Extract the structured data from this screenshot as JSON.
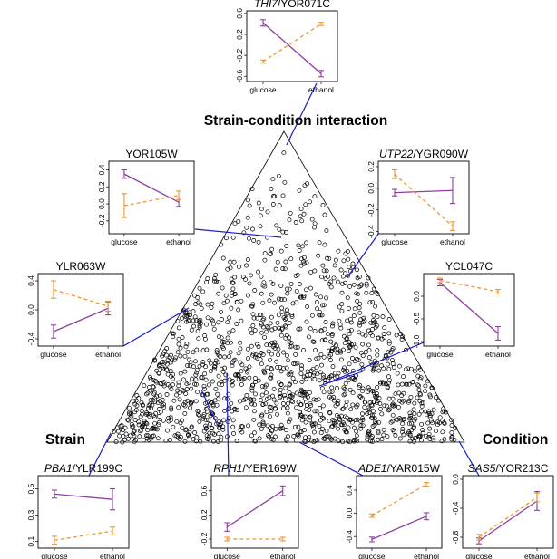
{
  "vertex_labels": {
    "top": "Strain-condition interaction",
    "left": "Strain",
    "right": "Condition"
  },
  "colors": {
    "points": "#000000",
    "leader": "#1a1acc",
    "strain_a": "#8e3fa0",
    "strain_b": "#e79a36"
  },
  "chart_data": [
    {
      "type": "scatter",
      "name": "ternary",
      "vertices": [
        "Strain-condition interaction",
        "Strain",
        "Condition"
      ],
      "points_description_count_approx": 1600
    },
    {
      "type": "line",
      "title_italic": "THI7",
      "title_rest": "/YOR071C",
      "categories": [
        "glucose",
        "ethanol"
      ],
      "ylim": [
        -0.7,
        0.65
      ],
      "yticks": [
        {
          "v": 0.6,
          "t": "0.6"
        },
        {
          "v": 0.2,
          "t": "0.2"
        },
        {
          "v": -0.2,
          "t": "-0.2"
        },
        {
          "v": -0.6,
          "t": "-0.6"
        }
      ],
      "series": [
        {
          "values": [
            0.42,
            -0.55
          ],
          "err": [
            0.06,
            0.06
          ]
        },
        {
          "values": [
            -0.32,
            0.4
          ],
          "err": [
            0.03,
            0.03
          ]
        }
      ]
    },
    {
      "type": "line",
      "title_italic": "",
      "title_rest": "YOR105W",
      "categories": [
        "glucose",
        "ethanol"
      ],
      "ylim": [
        -0.35,
        0.5
      ],
      "yticks": [
        {
          "v": 0.4,
          "t": "0.4"
        },
        {
          "v": 0.2,
          "t": "0.2"
        },
        {
          "v": 0.0,
          "t": "0.0"
        },
        {
          "v": -0.2,
          "t": "-0.2"
        }
      ],
      "series": [
        {
          "values": [
            0.35,
            0.02
          ],
          "err": [
            0.05,
            0.05
          ]
        },
        {
          "values": [
            -0.02,
            0.1
          ],
          "err": [
            0.14,
            0.05
          ]
        }
      ]
    },
    {
      "type": "line",
      "title_italic": "UTP22",
      "title_rest": "/YGR090W",
      "categories": [
        "glucose",
        "ethanol"
      ],
      "ylim": [
        -0.42,
        0.25
      ],
      "yticks": [
        {
          "v": 0.2,
          "t": "0.2"
        },
        {
          "v": 0.0,
          "t": "0.0"
        },
        {
          "v": -0.2,
          "t": "-0.2"
        },
        {
          "v": -0.4,
          "t": "-0.4"
        }
      ],
      "series": [
        {
          "values": [
            -0.04,
            -0.02
          ],
          "err": [
            0.03,
            0.12
          ]
        },
        {
          "values": [
            0.13,
            -0.35
          ],
          "err": [
            0.04,
            0.04
          ]
        }
      ]
    },
    {
      "type": "line",
      "title_italic": "",
      "title_rest": "YLR063W",
      "categories": [
        "glucose",
        "ethanol"
      ],
      "ylim": [
        -0.5,
        0.5
      ],
      "yticks": [
        {
          "v": 0.4,
          "t": "0.4"
        },
        {
          "v": 0.0,
          "t": "0.0"
        },
        {
          "v": -0.4,
          "t": "-0.4"
        }
      ],
      "series": [
        {
          "values": [
            -0.3,
            0.02
          ],
          "err": [
            0.09,
            0.09
          ]
        },
        {
          "values": [
            0.28,
            0.05
          ],
          "err": [
            0.12,
            0.07
          ]
        }
      ]
    },
    {
      "type": "line",
      "title_italic": "",
      "title_rest": "YCL047C",
      "categories": [
        "glucose",
        "ethanol"
      ],
      "ylim": [
        -1.1,
        0.5
      ],
      "yticks": [
        {
          "v": 0.0,
          "t": "0.0"
        },
        {
          "v": -0.5,
          "t": "-0.5"
        },
        {
          "v": -1.0,
          "t": "-1.0"
        }
      ],
      "series": [
        {
          "values": [
            0.3,
            -0.82
          ],
          "err": [
            0.07,
            0.15
          ]
        },
        {
          "values": [
            0.35,
            0.1
          ],
          "err": [
            0.05,
            0.05
          ]
        }
      ]
    },
    {
      "type": "line",
      "title_italic": "PBA1",
      "title_rest": "/YLR199C",
      "categories": [
        "glucose",
        "ethanol"
      ],
      "ylim": [
        0.05,
        0.6
      ],
      "yticks": [
        {
          "v": 0.5,
          "t": "0.5"
        },
        {
          "v": 0.3,
          "t": "0.3"
        },
        {
          "v": 0.1,
          "t": "0.1"
        }
      ],
      "series": [
        {
          "values": [
            0.46,
            0.42
          ],
          "err": [
            0.03,
            0.08
          ]
        },
        {
          "values": [
            0.11,
            0.18
          ],
          "err": [
            0.03,
            0.03
          ]
        }
      ]
    },
    {
      "type": "line",
      "title_italic": "RPH1",
      "title_rest": "/YER169W",
      "categories": [
        "glucose",
        "ethanol"
      ],
      "ylim": [
        -0.35,
        0.85
      ],
      "yticks": [
        {
          "v": 0.6,
          "t": "0.6"
        },
        {
          "v": 0.2,
          "t": "0.2"
        },
        {
          "v": -0.2,
          "t": "-0.2"
        }
      ],
      "series": [
        {
          "values": [
            0.0,
            0.6
          ],
          "err": [
            0.07,
            0.08
          ]
        },
        {
          "values": [
            -0.2,
            -0.2
          ],
          "err": [
            0.03,
            0.03
          ]
        }
      ]
    },
    {
      "type": "line",
      "title_italic": "ADE1",
      "title_rest": "/YAR015W",
      "categories": [
        "glucose",
        "ethanol"
      ],
      "ylim": [
        -0.6,
        0.65
      ],
      "yticks": [
        {
          "v": 0.4,
          "t": "0.4"
        },
        {
          "v": 0.0,
          "t": "0.0"
        },
        {
          "v": -0.4,
          "t": "-0.4"
        }
      ],
      "series": [
        {
          "values": [
            -0.45,
            -0.05
          ],
          "err": [
            0.04,
            0.06
          ]
        },
        {
          "values": [
            -0.04,
            0.5
          ],
          "err": [
            0.03,
            0.03
          ]
        }
      ]
    },
    {
      "type": "line",
      "title_italic": "SAS5",
      "title_rest": "/YOR213C",
      "categories": [
        "glucose",
        "ethanol"
      ],
      "ylim": [
        -0.95,
        0.05
      ],
      "yticks": [
        {
          "v": 0.0,
          "t": "0.0"
        },
        {
          "v": -0.4,
          "t": "-0.4"
        },
        {
          "v": -0.8,
          "t": "-0.8"
        }
      ],
      "series": [
        {
          "values": [
            -0.85,
            -0.3
          ],
          "err": [
            0.04,
            0.13
          ]
        },
        {
          "values": [
            -0.8,
            -0.25
          ],
          "err": [
            0.04,
            0.06
          ]
        }
      ]
    }
  ]
}
